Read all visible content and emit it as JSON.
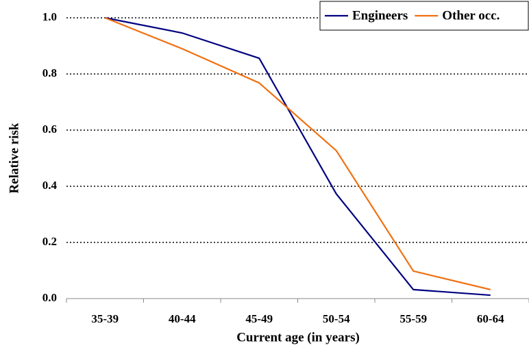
{
  "chart_data": {
    "type": "line",
    "xlabel": "Current age (in years)",
    "ylabel": "Relative risk",
    "categories": [
      "35-39",
      "40-44",
      "45-49",
      "50-54",
      "55-59",
      "60-64"
    ],
    "series": [
      {
        "name": "Engineers",
        "color": "#000080",
        "values": [
          1.0,
          0.946,
          0.856,
          0.373,
          0.032,
          0.012
        ]
      },
      {
        "name": "Other occ.",
        "color": "#f07010",
        "values": [
          1.0,
          0.89,
          0.768,
          0.527,
          0.098,
          0.032
        ]
      }
    ],
    "ylim": [
      0,
      1
    ],
    "yticks": [
      {
        "value": 0,
        "label": "0.0"
      },
      0.2,
      0.4,
      0.6,
      0.8,
      {
        "value": 1,
        "label": "1.0"
      }
    ],
    "grid": true,
    "legend": "top-right"
  }
}
